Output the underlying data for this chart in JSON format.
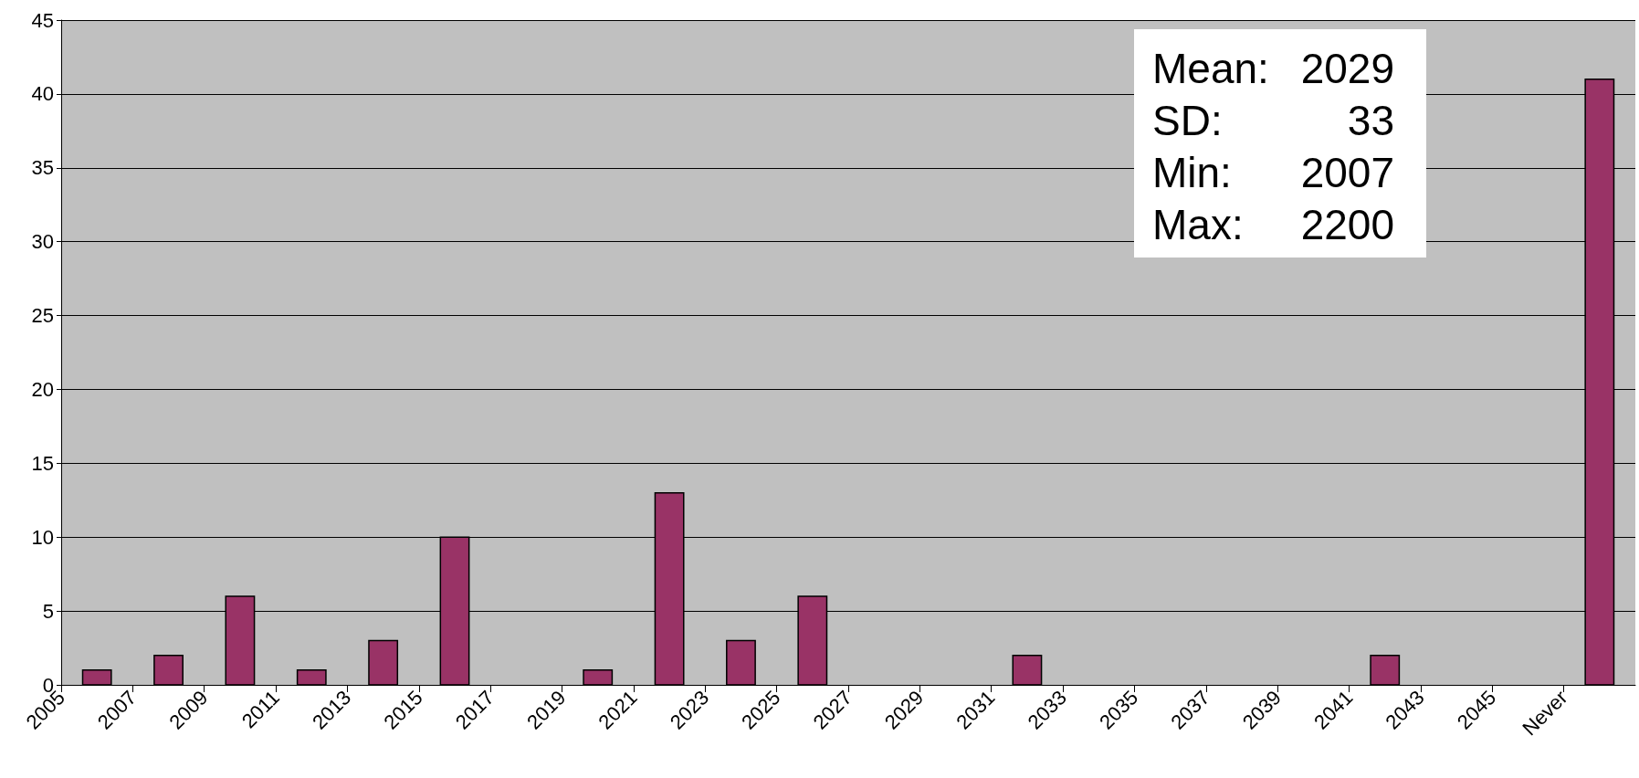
{
  "chart_data": {
    "type": "histogram",
    "bins": [
      2005,
      2007,
      2009,
      2011,
      2013,
      2015,
      2017,
      2019,
      2021,
      2023,
      2025,
      2027,
      2029,
      2031,
      2033,
      2035,
      2037,
      2039,
      2041,
      2043,
      2045,
      2047,
      2049
    ],
    "values": [
      1,
      2,
      6,
      1,
      3,
      10,
      0,
      1,
      13,
      3,
      6,
      0,
      0,
      2,
      0,
      0,
      0,
      0,
      2,
      0,
      0,
      41
    ],
    "color": "#993366",
    "xlim": [
      2005,
      2049
    ],
    "xticks": [
      2005,
      2007,
      2009,
      2011,
      2013,
      2015,
      2017,
      2019,
      2021,
      2023,
      2025,
      2027,
      2029,
      2031,
      2033,
      2035,
      2037,
      2039,
      2041,
      2043,
      2045,
      {
        "value": 2047,
        "label": "Never"
      }
    ],
    "ylim": [
      0,
      45
    ],
    "yticks": [
      0,
      5,
      10,
      15,
      20,
      25,
      30,
      35,
      40,
      45
    ],
    "grid": "y",
    "annotations": [
      "Mean:  2029",
      "SD:  33",
      "Min:  2007",
      "Max:  2200"
    ]
  }
}
